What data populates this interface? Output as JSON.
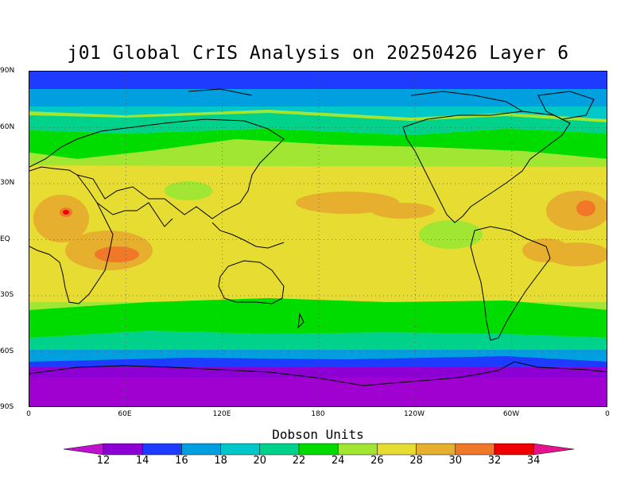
{
  "title": "j01 Global CrIS Analysis on 20250426 Layer 6",
  "lat_labels": [
    "90N",
    "60N",
    "30N",
    "EQ",
    "30S",
    "60S",
    "90S"
  ],
  "lon_labels": [
    "0",
    "60E",
    "120E",
    "180",
    "120W",
    "60W",
    "0"
  ],
  "colorbar": {
    "title": "Dobson Units",
    "ticks": [
      "12",
      "14",
      "16",
      "18",
      "20",
      "22",
      "24",
      "26",
      "28",
      "30",
      "32",
      "34"
    ],
    "colors": [
      "#c010d0",
      "#8c00d4",
      "#1e3cff",
      "#00a0e0",
      "#00c8c8",
      "#00d28c",
      "#00dc00",
      "#a0e632",
      "#e6dc32",
      "#e6af2d",
      "#f07828",
      "#f00000",
      "#e6148c"
    ]
  },
  "map": {
    "projection": "cylindrical-equidistant",
    "lon_range": [
      0,
      360
    ],
    "lat_range": [
      -90,
      90
    ],
    "grid": "dotted",
    "coastlines": true
  }
}
